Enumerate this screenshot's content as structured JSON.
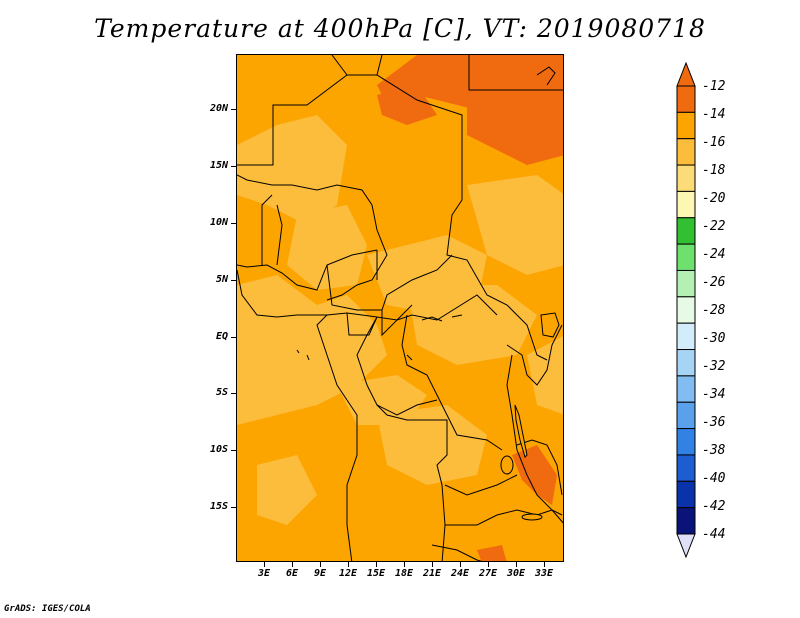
{
  "title": "Temperature at 400hPa [C], VT: 2019080718",
  "credit": "GrADS: IGES/COLA",
  "map": {
    "y_labels": [
      "20N",
      "15N",
      "10N",
      "5N",
      "EQ",
      "5S",
      "10S",
      "15S"
    ],
    "x_labels": [
      "3E",
      "6E",
      "9E",
      "12E",
      "15E",
      "18E",
      "21E",
      "24E",
      "27E",
      "30E",
      "33E"
    ],
    "fill_colors": {
      "warm_minus12": "#f06a10",
      "minus14": "#fca500",
      "minus16": "#fcbc3c"
    }
  },
  "colorbar": {
    "labels": [
      "-12",
      "-14",
      "-16",
      "-18",
      "-20",
      "-22",
      "-24",
      "-26",
      "-28",
      "-30",
      "-32",
      "-34",
      "-36",
      "-38",
      "-40",
      "-42",
      "-44"
    ],
    "colors": [
      "#f06a10",
      "#f06a10",
      "#fca500",
      "#fcbc3c",
      "#fcdc78",
      "#fcf8b4",
      "#32c032",
      "#6ee06e",
      "#b4f0b4",
      "#e6fae6",
      "#d2ecfa",
      "#a6d4f4",
      "#82bcf0",
      "#5aa0ea",
      "#3282e6",
      "#1e5cd2",
      "#0a32aa",
      "#0a1478",
      "#e0e0f8"
    ]
  }
}
